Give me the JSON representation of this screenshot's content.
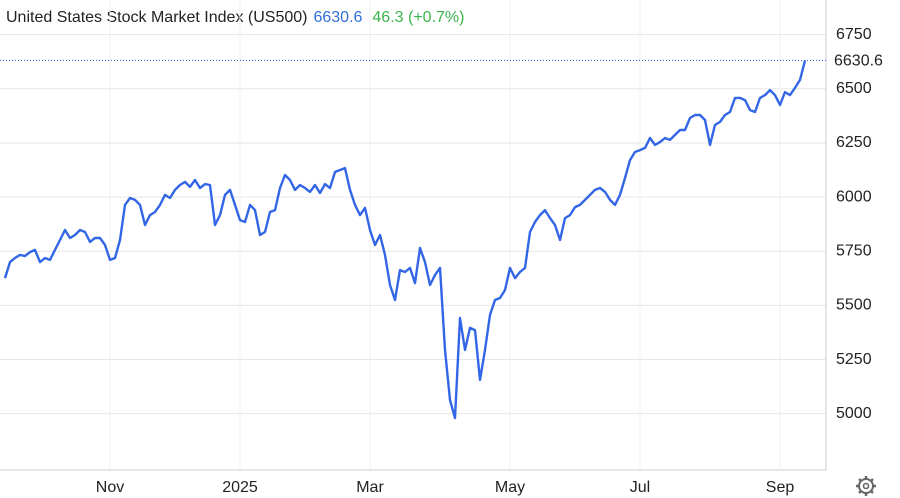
{
  "chart_data": {
    "type": "line",
    "title": "United States Stock Market Index (US500)",
    "price": 6630.6,
    "change_text": "46.3 (+0.7%)",
    "categories": [
      null,
      null,
      null,
      null,
      null,
      null,
      null,
      null,
      null,
      null,
      null,
      null,
      null,
      null,
      null,
      null,
      null,
      null,
      null,
      null,
      null,
      "Nov",
      null,
      null,
      null,
      null,
      null,
      null,
      null,
      null,
      null,
      null,
      null,
      null,
      null,
      null,
      null,
      null,
      null,
      null,
      null,
      null,
      null,
      null,
      null,
      null,
      null,
      "2025",
      null,
      null,
      null,
      null,
      null,
      null,
      null,
      null,
      null,
      null,
      null,
      null,
      null,
      null,
      null,
      null,
      null,
      null,
      null,
      null,
      null,
      null,
      null,
      null,
      null,
      "Mar",
      null,
      null,
      null,
      null,
      null,
      null,
      null,
      null,
      null,
      null,
      null,
      null,
      null,
      null,
      null,
      null,
      null,
      null,
      null,
      null,
      null,
      null,
      null,
      null,
      null,
      null,
      null,
      "May",
      null,
      null,
      null,
      null,
      null,
      null,
      null,
      null,
      null,
      null,
      null,
      null,
      null,
      null,
      null,
      null,
      null,
      null,
      null,
      null,
      null,
      null,
      null,
      null,
      null,
      "Jul",
      null,
      null,
      null,
      null,
      null,
      null,
      null,
      null,
      null,
      null,
      null,
      null,
      null,
      null,
      null,
      null,
      null,
      null,
      null,
      null,
      null,
      null,
      null,
      null,
      null,
      null,
      null,
      "Sep",
      null,
      null,
      null,
      null,
      null
    ],
    "series": [
      {
        "name": "US500",
        "color": "#3366e6",
        "values": [
          5626,
          5700,
          5719,
          5733,
          5728,
          5746,
          5756,
          5700,
          5719,
          5710,
          5756,
          5802,
          5848,
          5811,
          5825,
          5848,
          5839,
          5793,
          5811,
          5811,
          5779,
          5710,
          5719,
          5802,
          5964,
          5996,
          5987,
          5964,
          5871,
          5917,
          5931,
          5964,
          6010,
          5996,
          6033,
          6056,
          6070,
          6047,
          6079,
          6042,
          6060,
          6056,
          5871,
          5917,
          6010,
          6033,
          5964,
          5894,
          5885,
          5964,
          5940,
          5825,
          5839,
          5931,
          5940,
          6042,
          6102,
          6079,
          6033,
          6056,
          6042,
          6024,
          6056,
          6019,
          6060,
          6042,
          6116,
          6125,
          6134,
          6033,
          5964,
          5917,
          5950,
          5848,
          5779,
          5825,
          5733,
          5594,
          5525,
          5663,
          5654,
          5673,
          5603,
          5765,
          5700,
          5594,
          5640,
          5673,
          5294,
          5063,
          4980,
          5442,
          5294,
          5396,
          5386,
          5156,
          5294,
          5456,
          5525,
          5534,
          5571,
          5673,
          5626,
          5654,
          5673,
          5839,
          5885,
          5917,
          5940,
          5903,
          5871,
          5802,
          5903,
          5917,
          5954,
          5964,
          5987,
          6010,
          6033,
          6042,
          6024,
          5987,
          5964,
          6010,
          6088,
          6171,
          6208,
          6217,
          6227,
          6273,
          6241,
          6254,
          6273,
          6264,
          6287,
          6310,
          6310,
          6365,
          6379,
          6379,
          6356,
          6241,
          6333,
          6347,
          6379,
          6393,
          6458,
          6458,
          6448,
          6402,
          6393,
          6458,
          6471,
          6494,
          6471,
          6425,
          6485,
          6471,
          6504,
          6541,
          6630.6
        ]
      }
    ],
    "ylim": [
      4740,
      6910
    ],
    "yticks": [
      5000,
      5250,
      5500,
      5750,
      6000,
      6250,
      6500,
      6750
    ],
    "grid": true,
    "title_colors": {
      "price": "#2f6fd6",
      "change": "#3cb44b"
    }
  }
}
